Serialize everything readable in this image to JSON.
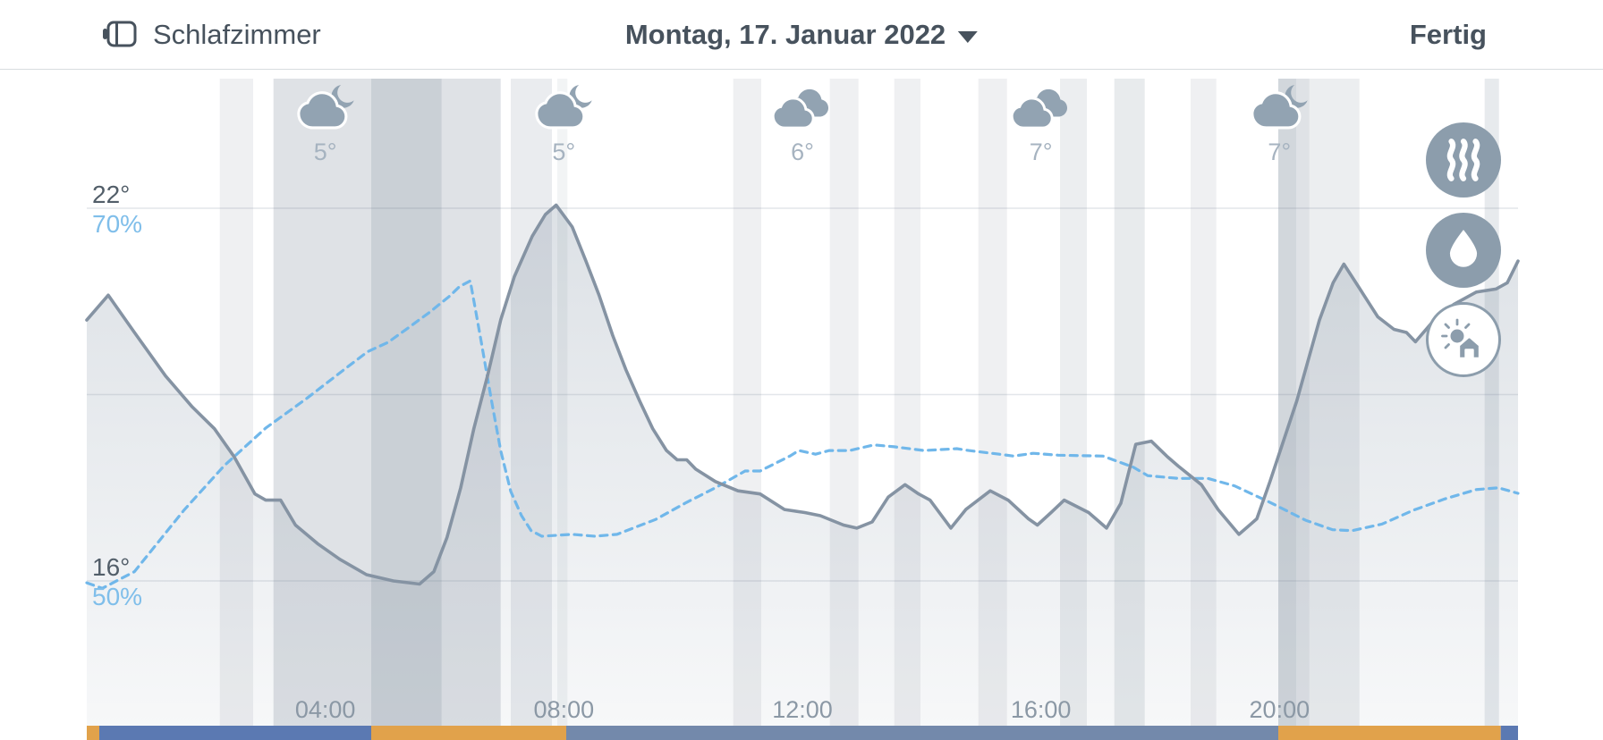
{
  "header": {
    "room_name": "Schlafzimmer",
    "date_label": "Montag, 17. Januar 2022",
    "done_label": "Fertig"
  },
  "weather_row": {
    "items": [
      {
        "icon": "cloud-moon",
        "temp_label": "5°",
        "hour": 4
      },
      {
        "icon": "cloud-moon",
        "temp_label": "5°",
        "hour": 8
      },
      {
        "icon": "clouds",
        "temp_label": "6°",
        "hour": 12
      },
      {
        "icon": "clouds",
        "temp_label": "7°",
        "hour": 16
      },
      {
        "icon": "cloud-moon",
        "temp_label": "7°",
        "hour": 20
      }
    ]
  },
  "side_buttons": [
    {
      "icon": "heating-icon"
    },
    {
      "icon": "humidity-icon"
    },
    {
      "icon": "outside-weather-icon"
    }
  ],
  "chart_data": {
    "type": "line",
    "title": "",
    "x_axis": {
      "unit": "hour",
      "range": [
        0,
        24
      ],
      "tick_hours": [
        4,
        8,
        12,
        16,
        20
      ],
      "tick_labels": [
        "04:00",
        "08:00",
        "12:00",
        "16:00",
        "20:00"
      ]
    },
    "y_axis_temperature": {
      "top_label": "22°",
      "bottom_label": "16°",
      "top_value": 22,
      "bottom_value": 16
    },
    "y_axis_humidity": {
      "top_label": "70%",
      "bottom_label": "50%",
      "top_value": 70,
      "bottom_value": 50
    },
    "gridline_temperatures": [
      22,
      19,
      16
    ],
    "series": [
      {
        "name": "temperature",
        "unit": "°C",
        "style": "solid",
        "color": "#8593A3",
        "points": [
          [
            0,
            20.2
          ],
          [
            0.36,
            20.6
          ],
          [
            0.8,
            20.0
          ],
          [
            1.32,
            19.3
          ],
          [
            1.77,
            18.8
          ],
          [
            2.14,
            18.45
          ],
          [
            2.47,
            18.0
          ],
          [
            2.82,
            17.4
          ],
          [
            3.0,
            17.3
          ],
          [
            3.25,
            17.3
          ],
          [
            3.5,
            16.9
          ],
          [
            3.87,
            16.6
          ],
          [
            4.24,
            16.35
          ],
          [
            4.69,
            16.1
          ],
          [
            5.14,
            16.0
          ],
          [
            5.58,
            15.95
          ],
          [
            5.82,
            16.15
          ],
          [
            6.04,
            16.7
          ],
          [
            6.27,
            17.5
          ],
          [
            6.49,
            18.45
          ],
          [
            6.72,
            19.3
          ],
          [
            6.94,
            20.2
          ],
          [
            7.17,
            20.9
          ],
          [
            7.47,
            21.55
          ],
          [
            7.69,
            21.9
          ],
          [
            7.87,
            22.05
          ],
          [
            8.14,
            21.7
          ],
          [
            8.37,
            21.15
          ],
          [
            8.59,
            20.6
          ],
          [
            8.82,
            19.95
          ],
          [
            9.04,
            19.4
          ],
          [
            9.27,
            18.9
          ],
          [
            9.49,
            18.45
          ],
          [
            9.72,
            18.1
          ],
          [
            9.9,
            17.95
          ],
          [
            10.06,
            17.95
          ],
          [
            10.21,
            17.8
          ],
          [
            10.54,
            17.6
          ],
          [
            10.92,
            17.45
          ],
          [
            11.29,
            17.4
          ],
          [
            11.7,
            17.15
          ],
          [
            12.04,
            17.1
          ],
          [
            12.3,
            17.05
          ],
          [
            12.69,
            16.9
          ],
          [
            12.91,
            16.85
          ],
          [
            13.17,
            16.95
          ],
          [
            13.44,
            17.35
          ],
          [
            13.72,
            17.55
          ],
          [
            13.95,
            17.4
          ],
          [
            14.14,
            17.3
          ],
          [
            14.49,
            16.85
          ],
          [
            14.74,
            17.15
          ],
          [
            15.15,
            17.45
          ],
          [
            15.45,
            17.3
          ],
          [
            15.79,
            17.0
          ],
          [
            15.94,
            16.9
          ],
          [
            16.17,
            17.1
          ],
          [
            16.39,
            17.3
          ],
          [
            16.8,
            17.1
          ],
          [
            17.1,
            16.85
          ],
          [
            17.34,
            17.25
          ],
          [
            17.59,
            18.2
          ],
          [
            17.85,
            18.25
          ],
          [
            18.12,
            18.0
          ],
          [
            18.3,
            17.85
          ],
          [
            18.69,
            17.55
          ],
          [
            18.97,
            17.15
          ],
          [
            19.32,
            16.75
          ],
          [
            19.62,
            17.0
          ],
          [
            19.84,
            17.6
          ],
          [
            20.29,
            18.9
          ],
          [
            20.67,
            20.2
          ],
          [
            20.9,
            20.8
          ],
          [
            21.08,
            21.1
          ],
          [
            21.35,
            20.7
          ],
          [
            21.65,
            20.25
          ],
          [
            21.92,
            20.05
          ],
          [
            22.13,
            20.0
          ],
          [
            22.28,
            19.85
          ],
          [
            22.55,
            20.15
          ],
          [
            22.92,
            20.45
          ],
          [
            23.3,
            20.65
          ],
          [
            23.63,
            20.7
          ],
          [
            23.82,
            20.8
          ],
          [
            24,
            21.15
          ]
        ]
      },
      {
        "name": "humidity",
        "unit": "%",
        "style": "dashed",
        "color": "#70B7EA",
        "points": [
          [
            0,
            49.9
          ],
          [
            0.26,
            49.6
          ],
          [
            0.8,
            50.5
          ],
          [
            1.63,
            53.8
          ],
          [
            2.31,
            56.2
          ],
          [
            3.0,
            58.2
          ],
          [
            3.69,
            59.8
          ],
          [
            4.38,
            61.5
          ],
          [
            4.71,
            62.3
          ],
          [
            5.05,
            62.8
          ],
          [
            5.4,
            63.6
          ],
          [
            5.74,
            64.4
          ],
          [
            6.09,
            65.3
          ],
          [
            6.25,
            65.8
          ],
          [
            6.43,
            66.1
          ],
          [
            6.6,
            63.1
          ],
          [
            6.78,
            59.8
          ],
          [
            6.94,
            57.0
          ],
          [
            7.11,
            54.8
          ],
          [
            7.29,
            53.5
          ],
          [
            7.45,
            52.7
          ],
          [
            7.63,
            52.4
          ],
          [
            8.14,
            52.5
          ],
          [
            8.52,
            52.4
          ],
          [
            8.89,
            52.5
          ],
          [
            9.54,
            53.3
          ],
          [
            10.05,
            54.2
          ],
          [
            10.54,
            55.0
          ],
          [
            11.04,
            55.9
          ],
          [
            11.29,
            55.9
          ],
          [
            11.79,
            56.7
          ],
          [
            11.94,
            57.0
          ],
          [
            12.22,
            56.8
          ],
          [
            12.45,
            57.0
          ],
          [
            12.79,
            57.0
          ],
          [
            13.2,
            57.3
          ],
          [
            13.54,
            57.2
          ],
          [
            14.04,
            57.0
          ],
          [
            14.59,
            57.1
          ],
          [
            14.79,
            57.0
          ],
          [
            15.3,
            56.8
          ],
          [
            15.54,
            56.7
          ],
          [
            15.87,
            56.85
          ],
          [
            16.29,
            56.75
          ],
          [
            17.04,
            56.7
          ],
          [
            17.55,
            56.1
          ],
          [
            17.79,
            55.65
          ],
          [
            18.3,
            55.5
          ],
          [
            18.8,
            55.5
          ],
          [
            19.25,
            55.1
          ],
          [
            19.85,
            54.2
          ],
          [
            20.44,
            53.25
          ],
          [
            20.89,
            52.75
          ],
          [
            21.22,
            52.7
          ],
          [
            21.72,
            53.05
          ],
          [
            22.25,
            53.8
          ],
          [
            22.77,
            54.4
          ],
          [
            23.3,
            54.9
          ],
          [
            23.67,
            55.0
          ],
          [
            24,
            54.7
          ]
        ]
      }
    ],
    "activity_bands": [
      {
        "s": 2.23,
        "e": 2.79,
        "o": 0.1
      },
      {
        "s": 3.13,
        "e": 4.77,
        "o": 0.2
      },
      {
        "s": 4.77,
        "e": 5.95,
        "o": 0.33
      },
      {
        "s": 5.95,
        "e": 6.94,
        "o": 0.2
      },
      {
        "s": 7.11,
        "e": 7.8,
        "o": 0.13
      },
      {
        "s": 7.89,
        "e": 8.06,
        "o": 0.08
      },
      {
        "s": 10.84,
        "e": 11.31,
        "o": 0.1
      },
      {
        "s": 12.46,
        "e": 12.94,
        "o": 0.1
      },
      {
        "s": 13.54,
        "e": 13.98,
        "o": 0.1
      },
      {
        "s": 14.95,
        "e": 15.43,
        "o": 0.1
      },
      {
        "s": 16.32,
        "e": 16.77,
        "o": 0.12
      },
      {
        "s": 17.23,
        "e": 17.74,
        "o": 0.14
      },
      {
        "s": 18.51,
        "e": 18.94,
        "o": 0.1
      },
      {
        "s": 19.98,
        "e": 20.28,
        "o": 0.28
      },
      {
        "s": 20.28,
        "e": 20.5,
        "o": 0.2
      },
      {
        "s": 20.5,
        "e": 21.34,
        "o": 0.12
      },
      {
        "s": 23.44,
        "e": 23.68,
        "o": 0.15
      }
    ],
    "schedule_bar": [
      {
        "s": 0,
        "e": 0.21,
        "color": "#E1A24B"
      },
      {
        "s": 0.21,
        "e": 4.77,
        "color": "#5B79B2"
      },
      {
        "s": 4.77,
        "e": 8.04,
        "color": "#E1A24B"
      },
      {
        "s": 8.04,
        "e": 19.98,
        "color": "#7389AB"
      },
      {
        "s": 19.98,
        "e": 23.71,
        "color": "#E1A24B"
      },
      {
        "s": 23.71,
        "e": 24,
        "color": "#5B79B2"
      }
    ]
  }
}
